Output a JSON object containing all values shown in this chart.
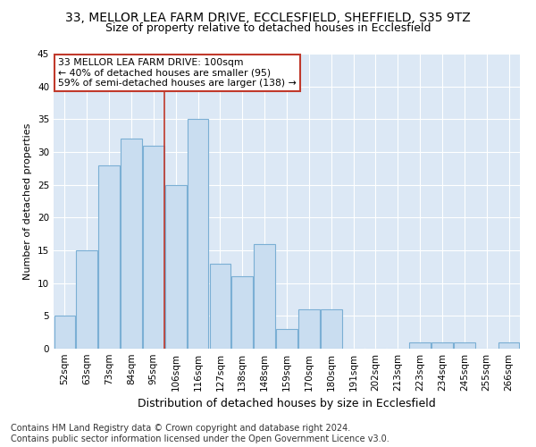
{
  "title1": "33, MELLOR LEA FARM DRIVE, ECCLESFIELD, SHEFFIELD, S35 9TZ",
  "title2": "Size of property relative to detached houses in Ecclesfield",
  "xlabel": "Distribution of detached houses by size in Ecclesfield",
  "ylabel": "Number of detached properties",
  "footnote1": "Contains HM Land Registry data © Crown copyright and database right 2024.",
  "footnote2": "Contains public sector information licensed under the Open Government Licence v3.0.",
  "categories": [
    "52sqm",
    "63sqm",
    "73sqm",
    "84sqm",
    "95sqm",
    "106sqm",
    "116sqm",
    "127sqm",
    "138sqm",
    "148sqm",
    "159sqm",
    "170sqm",
    "180sqm",
    "191sqm",
    "202sqm",
    "213sqm",
    "223sqm",
    "234sqm",
    "245sqm",
    "255sqm",
    "266sqm"
  ],
  "values": [
    5,
    15,
    28,
    32,
    31,
    25,
    35,
    13,
    11,
    16,
    3,
    6,
    6,
    0,
    0,
    0,
    1,
    1,
    1,
    0,
    1
  ],
  "bar_color": "#c9ddf0",
  "bar_edge_color": "#7bafd4",
  "red_line_x": 4.5,
  "red_line_color": "#c0392b",
  "annotation_box_edge_color": "#c0392b",
  "property_size_label": "33 MELLOR LEA FARM DRIVE: 100sqm",
  "annotation_line1": "← 40% of detached houses are smaller (95)",
  "annotation_line2": "59% of semi-detached houses are larger (138) →",
  "ylim": [
    0,
    45
  ],
  "yticks": [
    0,
    5,
    10,
    15,
    20,
    25,
    30,
    35,
    40,
    45
  ],
  "fig_background": "#ffffff",
  "plot_background": "#dce8f5",
  "grid_color": "#ffffff",
  "title1_fontsize": 10,
  "title2_fontsize": 9,
  "xlabel_fontsize": 9,
  "ylabel_fontsize": 8,
  "tick_fontsize": 7.5,
  "footnote_fontsize": 7
}
